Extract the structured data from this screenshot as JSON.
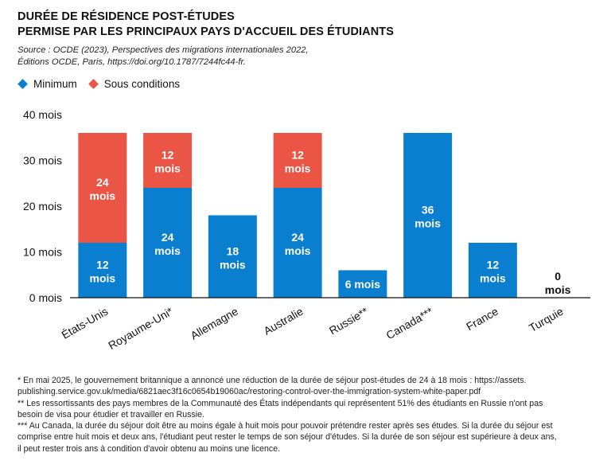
{
  "title_line1": "DURÉE DE RÉSIDENCE POST-ÉTUDES",
  "title_line2": "PERMISE PAR LES PRINCIPAUX PAYS D'ACCUEIL DES ÉTUDIANTS",
  "source_line1": "Source : OCDE (2023), Perspectives des migrations internationales 2022,",
  "source_line2": "Éditions OCDE, Paris, https://doi.org/10.1787/7244fc44-fr.",
  "colors": {
    "minimum": "#0a7fd0",
    "conditions": "#ea5545"
  },
  "chart_data": {
    "type": "bar",
    "stacked": true,
    "title": "DURÉE DE RÉSIDENCE POST-ÉTUDES PERMISE PAR LES PRINCIPAUX PAYS D'ACCUEIL DES ÉTUDIANTS",
    "categories": [
      "États-Unis",
      "Royaume-Uni*",
      "Allemagne",
      "Australie",
      "Russie**",
      "Canada***",
      "France",
      "Turquie"
    ],
    "series": [
      {
        "name": "Minimum",
        "values": [
          12,
          24,
          18,
          24,
          6,
          36,
          12,
          0
        ],
        "labels": [
          "12 mois",
          "24 mois",
          "18 mois",
          "24 mois",
          "6 mois",
          "36 mois",
          "12 mois",
          "0 mois"
        ]
      },
      {
        "name": "Sous conditions",
        "values": [
          24,
          12,
          0,
          12,
          0,
          0,
          0,
          0
        ],
        "labels": [
          "24 mois",
          "12 mois",
          "",
          "12 mois",
          "",
          "",
          "",
          ""
        ]
      }
    ],
    "yticks": [
      0,
      10,
      20,
      30,
      40
    ],
    "ytick_labels": [
      "0 mois",
      "10 mois",
      "20 mois",
      "30 mois",
      "40 mois"
    ],
    "ylim": [
      0,
      40
    ],
    "xlabel": "",
    "ylabel": "",
    "legend_position": "top-left",
    "grid": false
  },
  "footnotes": [
    "* En mai 2025, le gouvernement britannique a annoncé une réduction de la durée de séjour post-études de 24 à 18 mois : https://assets.",
    "publishing.service.gov.uk/media/6821aec3f16c0654b19060ac/restoring-control-over-the-immigration-system-white-paper.pdf",
    "** Les ressortissants des pays membres de la Communauté des États indépendants qui représentent 51% des étudiants en Russie n'ont pas",
    "besoin de visa pour étudier et travailler en Russie.",
    "*** Au Canada, la durée du séjour doit être au moins égale à huit mois pour pouvoir prétendre rester après ses études. Si la durée du séjour est",
    "comprise entre huit mois et deux ans, l'étudiant peut rester le temps de son séjour d'études. Si la durée de son séjour est supérieure à deux ans,",
    "il peut rester trois ans à condition d'avoir obtenu au moins une licence."
  ]
}
